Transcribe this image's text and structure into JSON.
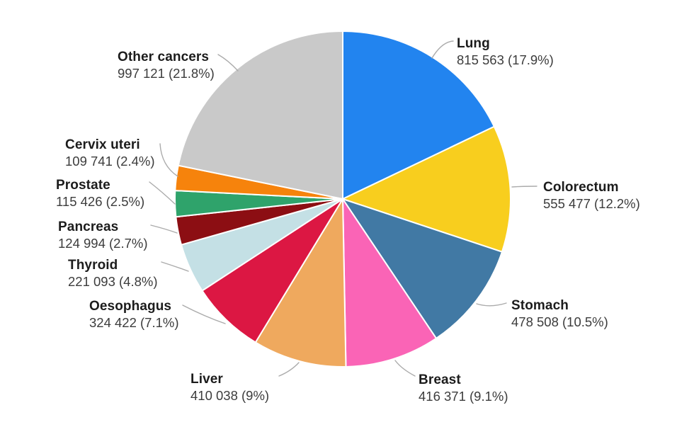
{
  "chart_data": {
    "type": "pie",
    "title": "",
    "legend_position": "none",
    "labels_style": "callout",
    "slice_border_color": "#FFFFFF",
    "leader_line_color": "#ABABAB",
    "slices": [
      {
        "name": "Lung",
        "value": 815563,
        "pct": 17.9,
        "value_label": "815 563 (17.9%)",
        "color": "#2284EF"
      },
      {
        "name": "Colorectum",
        "value": 555477,
        "pct": 12.2,
        "value_label": "555 477 (12.2%)",
        "color": "#F8CE1E"
      },
      {
        "name": "Stomach",
        "value": 478508,
        "pct": 10.5,
        "value_label": "478 508 (10.5%)",
        "color": "#4179A4"
      },
      {
        "name": "Breast",
        "value": 416371,
        "pct": 9.1,
        "value_label": "416 371 (9.1%)",
        "color": "#FA64B6"
      },
      {
        "name": "Liver",
        "value": 410038,
        "pct": 9.0,
        "value_label": "410 038 (9%)",
        "color": "#EFA95E"
      },
      {
        "name": "Oesophagus",
        "value": 324422,
        "pct": 7.1,
        "value_label": "324 422 (7.1%)",
        "color": "#DC1743"
      },
      {
        "name": "Thyroid",
        "value": 221093,
        "pct": 4.8,
        "value_label": "221 093 (4.8%)",
        "color": "#C4E0E5"
      },
      {
        "name": "Pancreas",
        "value": 124994,
        "pct": 2.7,
        "value_label": "124 994 (2.7%)",
        "color": "#8C0E13"
      },
      {
        "name": "Prostate",
        "value": 115426,
        "pct": 2.5,
        "value_label": "115 426 (2.5%)",
        "color": "#2FA36B"
      },
      {
        "name": "Cervix uteri",
        "value": 109741,
        "pct": 2.4,
        "value_label": "109 741 (2.4%)",
        "color": "#F6830C"
      },
      {
        "name": "Other cancers",
        "value": 997121,
        "pct": 21.8,
        "value_label": "997 121 (21.8%)",
        "color": "#C9C9C9"
      }
    ]
  }
}
